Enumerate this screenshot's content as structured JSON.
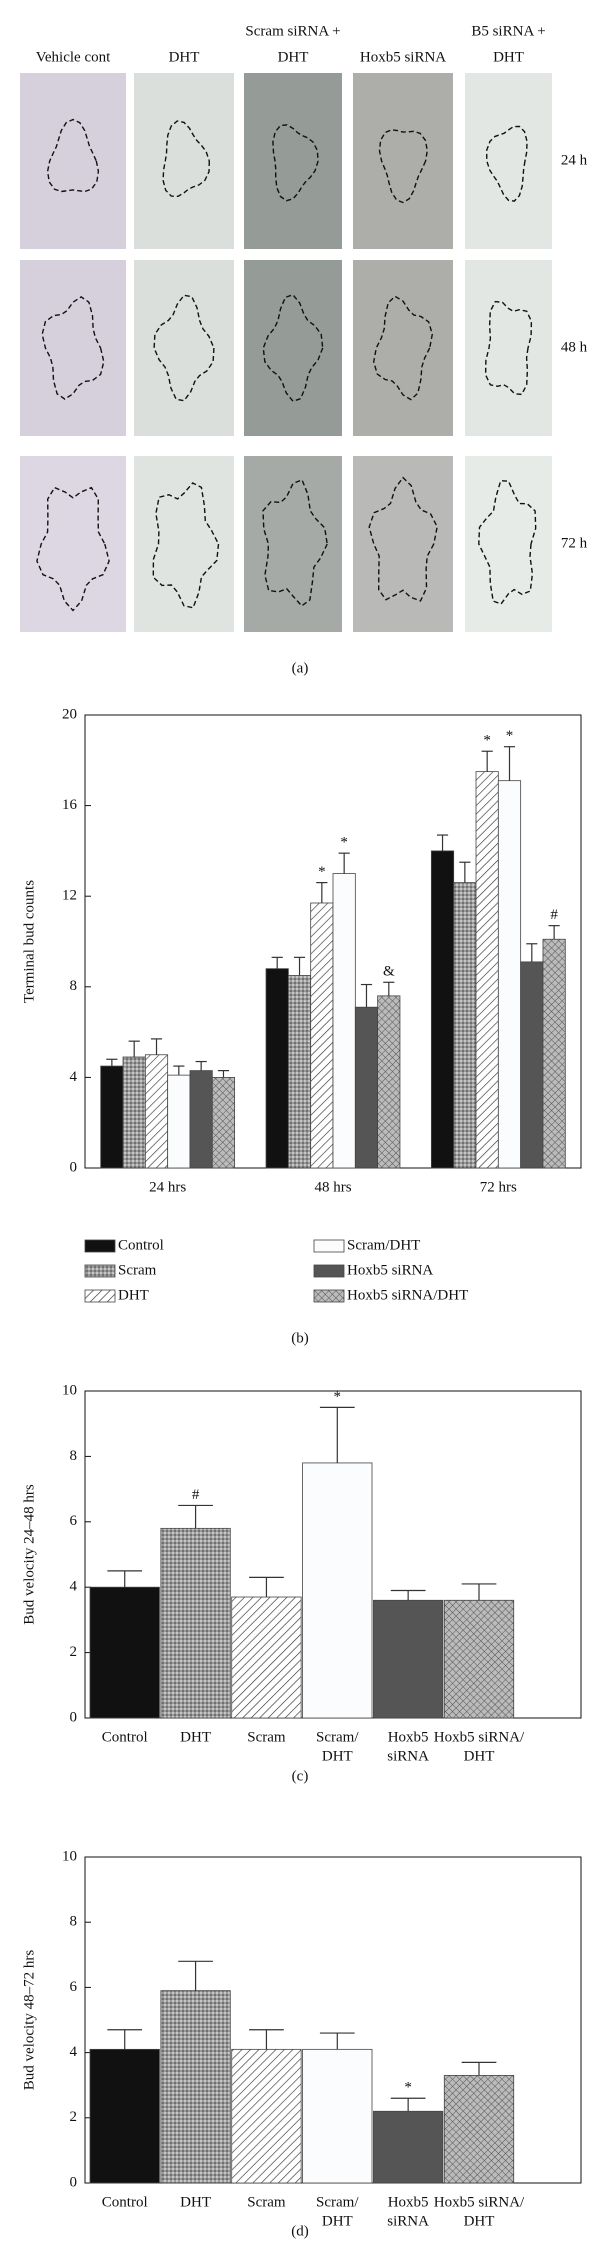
{
  "panel_a": {
    "columns": [
      [
        "Vehicle cont"
      ],
      [
        "DHT"
      ],
      [
        "Scram siRNA +",
        "DHT"
      ],
      [
        "Hoxb5 siRNA"
      ],
      [
        "B5 siRNA +",
        "DHT"
      ]
    ],
    "rows": [
      "24 h",
      "48 h",
      "72 h"
    ],
    "caption": "(a)"
  },
  "chart_data": [
    {
      "type": "bar",
      "caption": "(b)",
      "y_label": "Terminal bud counts",
      "categories": [
        "24 hrs",
        "48 hrs",
        "72 hrs"
      ],
      "ylim": [
        0,
        20
      ],
      "yticks": [
        0,
        4,
        8,
        12,
        16,
        20
      ],
      "series": [
        {
          "name": "Control",
          "pattern": "black",
          "values": [
            4.5,
            8.8,
            14.0
          ],
          "errors": [
            0.3,
            0.5,
            0.7
          ],
          "labels": [
            null,
            null,
            null
          ]
        },
        {
          "name": "Scram",
          "pattern": "dots",
          "values": [
            4.9,
            8.5,
            12.6
          ],
          "errors": [
            0.7,
            0.8,
            0.9
          ],
          "labels": [
            null,
            null,
            null
          ]
        },
        {
          "name": "DHT",
          "pattern": "hatch",
          "values": [
            5.0,
            11.7,
            17.5
          ],
          "errors": [
            0.7,
            0.9,
            0.9
          ],
          "labels": [
            null,
            "*",
            "*"
          ]
        },
        {
          "name": "Scram/DHT",
          "pattern": "white",
          "values": [
            4.1,
            13.0,
            17.1
          ],
          "errors": [
            0.4,
            0.9,
            1.5
          ],
          "labels": [
            null,
            "*",
            "*"
          ]
        },
        {
          "name": "Hoxb5 siRNA",
          "pattern": "dark",
          "values": [
            4.3,
            7.1,
            9.1
          ],
          "errors": [
            0.4,
            1.0,
            0.8
          ],
          "labels": [
            null,
            null,
            null
          ]
        },
        {
          "name": "Hoxb5 siRNA/DHT",
          "pattern": "cross",
          "values": [
            4.0,
            7.6,
            10.1
          ],
          "errors": [
            0.3,
            0.6,
            0.6
          ],
          "labels": [
            null,
            "&",
            "#"
          ]
        }
      ]
    },
    {
      "type": "bar",
      "caption": "(c)",
      "y_label": "Bud velocity 24–48 hrs",
      "categories": [
        [
          "Control"
        ],
        [
          "DHT"
        ],
        [
          "Scram"
        ],
        [
          "Scram/",
          "DHT"
        ],
        [
          "Hoxb5",
          "siRNA"
        ],
        [
          "Hoxb5 siRNA/",
          "DHT"
        ]
      ],
      "patterns": [
        "black",
        "dots",
        "hatch",
        "white",
        "dark",
        "cross"
      ],
      "values": [
        4.0,
        5.8,
        3.7,
        7.8,
        3.6,
        3.6
      ],
      "errors": [
        0.5,
        0.7,
        0.6,
        1.7,
        0.3,
        0.5
      ],
      "labels": [
        null,
        "#",
        null,
        "*",
        null,
        null
      ],
      "ylim": [
        0,
        10
      ],
      "yticks": [
        0,
        2,
        4,
        6,
        8,
        10
      ]
    },
    {
      "type": "bar",
      "caption": "(d)",
      "y_label": "Bud velocity 48–72 hrs",
      "categories": [
        [
          "Control"
        ],
        [
          "DHT"
        ],
        [
          "Scram"
        ],
        [
          "Scram/",
          "DHT"
        ],
        [
          "Hoxb5",
          "siRNA"
        ],
        [
          "Hoxb5 siRNA/",
          "DHT"
        ]
      ],
      "patterns": [
        "black",
        "dots",
        "hatch",
        "white",
        "dark",
        "cross"
      ],
      "values": [
        4.1,
        5.9,
        4.1,
        4.1,
        2.2,
        3.3
      ],
      "errors": [
        0.6,
        0.9,
        0.6,
        0.5,
        0.4,
        0.4
      ],
      "labels": [
        null,
        null,
        null,
        null,
        "*",
        null
      ],
      "ylim": [
        0,
        10
      ],
      "yticks": [
        0,
        2,
        4,
        6,
        8,
        10
      ]
    }
  ]
}
